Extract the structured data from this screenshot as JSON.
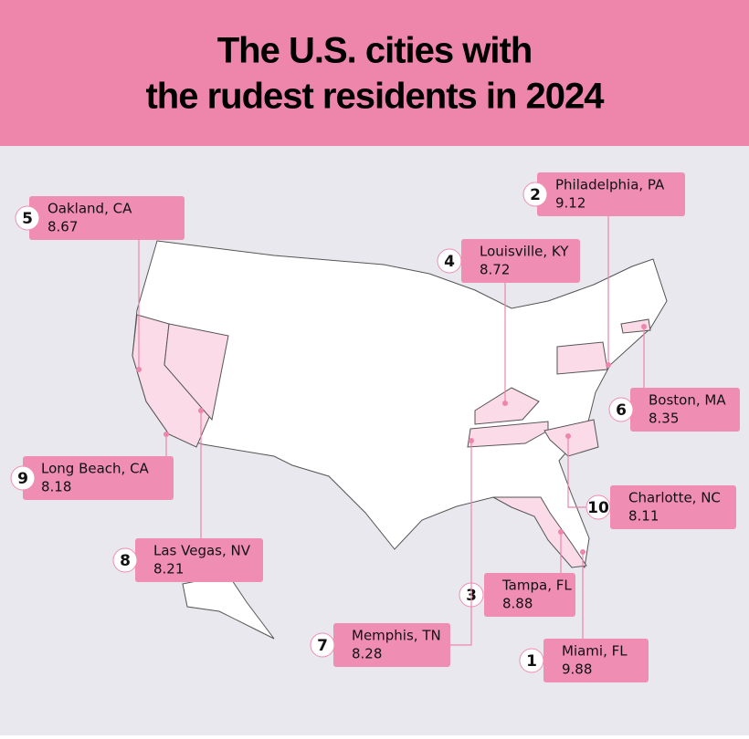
{
  "title_lines": [
    "The U.S. cities with",
    "the rudest residents in 2024"
  ],
  "cities": [
    {
      "rank": 5,
      "name": "Oakland, CA",
      "score": 8.67
    },
    {
      "rank": 2,
      "name": "Philadelphia, PA",
      "score": 9.12
    },
    {
      "rank": 4,
      "name": "Louisville, KY",
      "score": 8.72
    },
    {
      "rank": 6,
      "name": "Boston, MA",
      "score": 8.35
    },
    {
      "rank": 9,
      "name": "Long Beach, CA",
      "score": 8.18
    },
    {
      "rank": 10,
      "name": "Charlotte, NC",
      "score": 8.11
    },
    {
      "rank": 8,
      "name": "Las Vegas, NV",
      "score": 8.21
    },
    {
      "rank": 3,
      "name": "Tampa, FL",
      "score": 8.88
    },
    {
      "rank": 7,
      "name": "Memphis, TN",
      "score": 8.28
    },
    {
      "rank": 1,
      "name": "Miami, FL",
      "score": 9.88
    }
  ]
}
